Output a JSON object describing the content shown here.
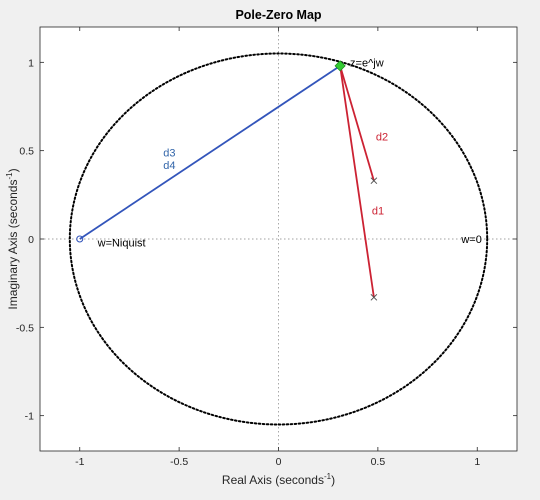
{
  "chart_data": {
    "type": "scatter",
    "title": "Pole-Zero Map",
    "xlabel": "Real Axis (seconds",
    "xlabel_sup": "-1",
    "xlabel_tail": ")",
    "ylabel": "Imaginary Axis (seconds",
    "ylabel_sup": "-1",
    "ylabel_tail": ")",
    "xlim": [
      -1.2,
      1.2
    ],
    "ylim": [
      -1.2,
      1.2
    ],
    "xticks": [
      -1,
      -0.5,
      0,
      0.5,
      1
    ],
    "xtick_labels": [
      "-1",
      "-0.5",
      "0",
      "0.5",
      "1"
    ],
    "yticks": [
      1,
      0.5,
      0,
      -0.5,
      -1
    ],
    "ytick_labels": [
      "1",
      "0.5",
      "0",
      "-0.5",
      "-1"
    ],
    "grid": false,
    "unit_circle": {
      "center": [
        0,
        0
      ],
      "radius": 1.05,
      "style": "dotted",
      "color": "#000000"
    },
    "crosshair_axes": {
      "style": "dotted",
      "color": "#a0a0a0"
    },
    "poles": [
      {
        "x": 0.48,
        "y": 0.33
      },
      {
        "x": 0.48,
        "y": -0.33
      }
    ],
    "zeros": [
      {
        "x": -1.0,
        "y": 0.0
      }
    ],
    "point_z": {
      "x": 0.31,
      "y": 0.98,
      "color": "#33cc33"
    },
    "segments": [
      {
        "from": [
          0.31,
          0.98
        ],
        "to": [
          0.48,
          0.33
        ],
        "color": "#cc2233"
      },
      {
        "from": [
          0.31,
          0.98
        ],
        "to": [
          0.48,
          -0.33
        ],
        "color": "#cc2233"
      },
      {
        "from": [
          0.31,
          0.98
        ],
        "to": [
          -1.0,
          0.0
        ],
        "color": "#3355bb"
      }
    ],
    "annotations": [
      {
        "text": "z=e^jw",
        "x": 0.36,
        "y": 1.0,
        "color": "#000000"
      },
      {
        "text": "d2",
        "x": 0.49,
        "y": 0.58,
        "color": "#cc2233"
      },
      {
        "text": "d1",
        "x": 0.47,
        "y": 0.16,
        "color": "#cc2233"
      },
      {
        "text": "d3",
        "x": -0.58,
        "y": 0.49,
        "color": "#3366aa"
      },
      {
        "text": "d4",
        "x": -0.58,
        "y": 0.42,
        "color": "#3366aa"
      },
      {
        "text": "w=Niquist",
        "x": -0.91,
        "y": -0.02,
        "color": "#000000"
      },
      {
        "text": "w=0",
        "x": 0.92,
        "y": 0.0,
        "color": "#000000"
      }
    ]
  }
}
